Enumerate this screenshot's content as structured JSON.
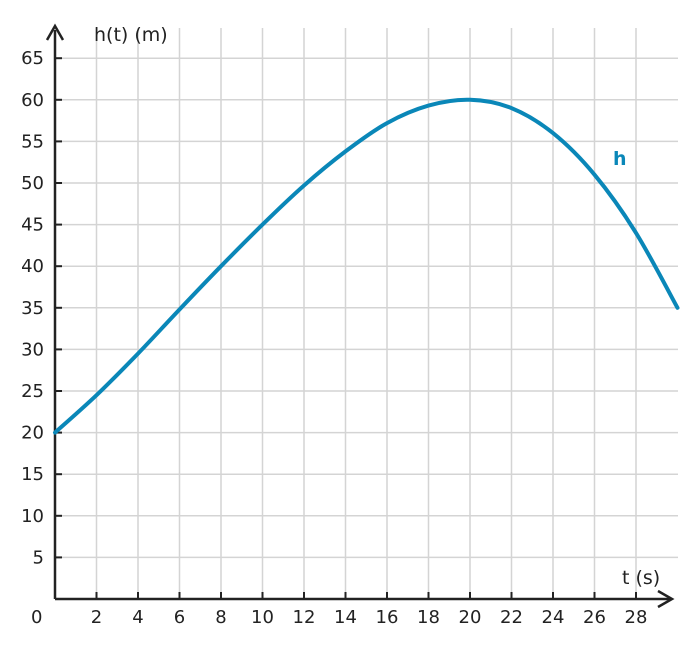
{
  "chart_data": {
    "type": "line",
    "title": "",
    "xlabel": "t (s)",
    "ylabel": "h(t) (m)",
    "xlim": [
      0,
      30
    ],
    "ylim": [
      0,
      66
    ],
    "x_ticks": [
      2,
      4,
      6,
      8,
      10,
      12,
      14,
      16,
      18,
      20,
      22,
      24,
      26,
      28
    ],
    "y_ticks": [
      5,
      10,
      15,
      20,
      25,
      30,
      35,
      40,
      45,
      50,
      55,
      60,
      65
    ],
    "origin_label": "0",
    "grid": true,
    "series": [
      {
        "name": "h",
        "color": "#0a87b8",
        "x": [
          0,
          2,
          4,
          6,
          8,
          10,
          12,
          14,
          16,
          18,
          20,
          22,
          24,
          26,
          28,
          30
        ],
        "y": [
          20,
          24.5,
          29.5,
          34.8,
          40,
          45,
          49.7,
          53.8,
          57.2,
          59.3,
          60,
          59,
          56,
          51,
          44,
          35
        ]
      }
    ]
  }
}
